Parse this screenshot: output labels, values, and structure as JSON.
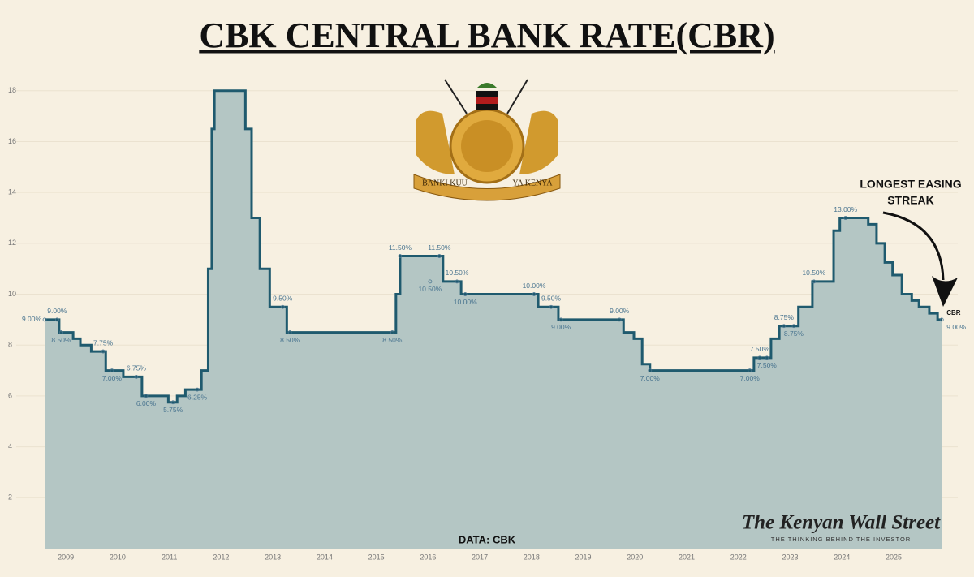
{
  "chart_data": {
    "type": "step",
    "title": "CBK CENTRAL BANK RATE(CBR)",
    "source": "DATA: CBK",
    "emblem_text": [
      "BANKI KUU",
      "YA KENYA"
    ],
    "callout": [
      "LONGEST EASING",
      "STREAK"
    ],
    "brand": "The Kenyan Wall Street",
    "tagline": "THE THINKING BEHIND THE INVESTOR",
    "xlim": [
      2008.04,
      2026.24
    ],
    "ylim": [
      0,
      18.6
    ],
    "xticks": [
      2009,
      2010,
      2011,
      2012,
      2013,
      2014,
      2015,
      2016,
      2017,
      2018,
      2019,
      2020,
      2021,
      2022,
      2023,
      2024,
      2025
    ],
    "yticks": [
      2,
      4,
      6,
      8,
      10,
      12,
      14,
      16,
      18
    ],
    "grid": true,
    "series": [
      {
        "name": "CBR",
        "color": "#1f5a6e",
        "fill": "#b4c6c4",
        "x": [
          2008.59,
          2008.87,
          2009.14,
          2009.28,
          2009.49,
          2009.77,
          2010.11,
          2010.47,
          2010.98,
          2011.15,
          2011.31,
          2011.62,
          2011.75,
          2011.82,
          2011.87,
          2012.47,
          2012.59,
          2012.75,
          2012.94,
          2013.27,
          2015.38,
          2015.46,
          2016.29,
          2016.64,
          2018.13,
          2018.52,
          2019.78,
          2019.98,
          2020.14,
          2020.29,
          2022.3,
          2022.63,
          2022.79,
          2023.16,
          2023.43,
          2023.84,
          2023.96,
          2024.51,
          2024.67,
          2024.83,
          2024.98,
          2025.16,
          2025.35,
          2025.49,
          2025.69,
          2025.85,
          2025.93
        ],
        "values": [
          9.0,
          8.5,
          8.25,
          8.0,
          7.75,
          7.0,
          6.75,
          6.0,
          5.75,
          6.0,
          6.25,
          7.0,
          11.0,
          16.5,
          18.0,
          16.5,
          13.0,
          11.0,
          9.5,
          8.5,
          10.0,
          11.5,
          10.5,
          10.0,
          9.5,
          9.0,
          8.5,
          8.25,
          7.25,
          7.0,
          7.5,
          8.25,
          8.75,
          9.5,
          10.5,
          12.5,
          13.0,
          12.75,
          12.0,
          11.25,
          10.75,
          10.0,
          9.75,
          9.5,
          9.25,
          9.0,
          9.0
        ]
      }
    ],
    "labels": [
      {
        "x": 2008.59,
        "value": 9.0,
        "label": "9.00%",
        "position": "left"
      },
      {
        "x": 2008.83,
        "value": 9.0,
        "label": "9.00%",
        "position": "above"
      },
      {
        "x": 2008.91,
        "value": 8.5,
        "label": "8.50%",
        "position": "below"
      },
      {
        "x": 2009.72,
        "value": 7.75,
        "label": "7.75%",
        "position": "above"
      },
      {
        "x": 2009.89,
        "value": 7.0,
        "label": "7.00%",
        "position": "below"
      },
      {
        "x": 2010.36,
        "value": 6.75,
        "label": "6.75%",
        "position": "above"
      },
      {
        "x": 2010.55,
        "value": 6.0,
        "label": "6.00%",
        "position": "below"
      },
      {
        "x": 2011.07,
        "value": 5.75,
        "label": "5.75%",
        "position": "below"
      },
      {
        "x": 2011.54,
        "value": 6.25,
        "label": "6.25%",
        "position": "below"
      },
      {
        "x": 2013.19,
        "value": 9.5,
        "label": "9.50%",
        "position": "above"
      },
      {
        "x": 2013.33,
        "value": 8.5,
        "label": "8.50%",
        "position": "below"
      },
      {
        "x": 2015.31,
        "value": 8.5,
        "label": "8.50%",
        "position": "below"
      },
      {
        "x": 2015.46,
        "value": 11.5,
        "label": "11.50%",
        "position": "above"
      },
      {
        "x": 2016.22,
        "value": 11.5,
        "label": "11.50%",
        "position": "above"
      },
      {
        "x": 2016.04,
        "value": 10.5,
        "label": "10.50%",
        "position": "below"
      },
      {
        "x": 2016.56,
        "value": 10.5,
        "label": "10.50%",
        "position": "above"
      },
      {
        "x": 2016.72,
        "value": 10.0,
        "label": "10.00%",
        "position": "below"
      },
      {
        "x": 2018.05,
        "value": 10.0,
        "label": "10.00%",
        "position": "above"
      },
      {
        "x": 2018.38,
        "value": 9.5,
        "label": "9.50%",
        "position": "above"
      },
      {
        "x": 2018.57,
        "value": 9.0,
        "label": "9.00%",
        "position": "below"
      },
      {
        "x": 2019.7,
        "value": 9.0,
        "label": "9.00%",
        "position": "above"
      },
      {
        "x": 2020.29,
        "value": 7.0,
        "label": "7.00%",
        "position": "below"
      },
      {
        "x": 2022.22,
        "value": 7.0,
        "label": "7.00%",
        "position": "below"
      },
      {
        "x": 2022.41,
        "value": 7.5,
        "label": "7.50%",
        "position": "above"
      },
      {
        "x": 2022.55,
        "value": 7.5,
        "label": "7.50%",
        "position": "below"
      },
      {
        "x": 2022.88,
        "value": 8.75,
        "label": "8.75%",
        "position": "above"
      },
      {
        "x": 2023.07,
        "value": 8.75,
        "label": "8.75%",
        "position": "below"
      },
      {
        "x": 2023.46,
        "value": 10.5,
        "label": "10.50%",
        "position": "above"
      },
      {
        "x": 2024.07,
        "value": 13.0,
        "label": "13.00%",
        "position": "above"
      },
      {
        "x": 2025.93,
        "value": 9.0,
        "label": "9.00%",
        "position": "right"
      }
    ]
  }
}
